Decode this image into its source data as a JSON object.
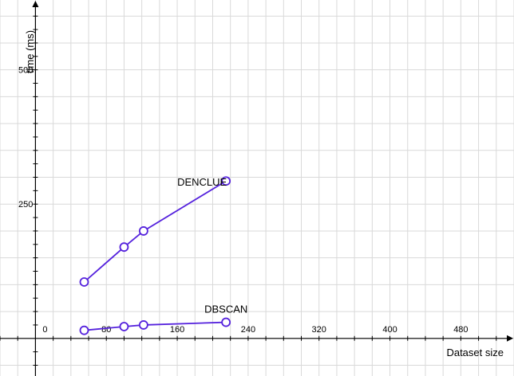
{
  "chart_data": {
    "type": "line",
    "xlabel": "Dataset size",
    "ylabel": "time (ms)",
    "xlim": [
      -40,
      540
    ],
    "ylim": [
      -70,
      630
    ],
    "x_ticks": [
      0,
      80,
      160,
      240,
      320,
      400,
      480
    ],
    "y_ticks": [
      250,
      500
    ],
    "grid": true,
    "series": [
      {
        "name": "DENCLUE",
        "color": "#5522dd",
        "points": [
          [
            55,
            105
          ],
          [
            100,
            170
          ],
          [
            122,
            200
          ],
          [
            215,
            293
          ]
        ]
      },
      {
        "name": "DBSCAN",
        "color": "#5522dd",
        "points": [
          [
            55,
            15
          ],
          [
            100,
            22
          ],
          [
            122,
            25
          ],
          [
            215,
            30
          ]
        ]
      }
    ]
  }
}
